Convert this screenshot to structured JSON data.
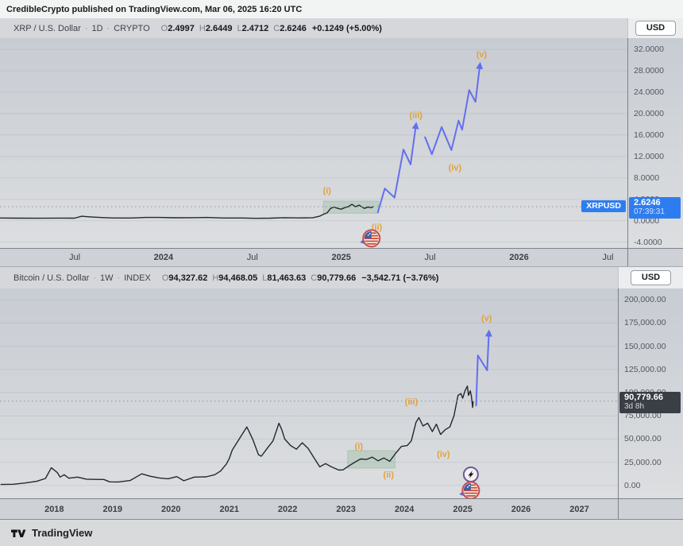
{
  "header": {
    "text": "CredibleCrypto published on TradingView.com, Mar 06, 2025 16:20 UTC"
  },
  "footer": {
    "brand": "TradingView"
  },
  "colors": {
    "projection_blue": "#5b66f0",
    "wave_orange": "#e2a23d",
    "series_dark": "#23272f",
    "box_green_fill": "rgba(96,160,104,0.20)",
    "box_green_edge": "rgba(96,160,104,0.30)",
    "grid": "rgba(120,128,140,0.16)",
    "dashed_price": "#8f949c",
    "badge_blue": "#2e7df0",
    "badge_dark": "#3a3e45",
    "avatar_ring": "#c84b4e",
    "lightning_ring": "#6b5b95"
  },
  "chart_data": [
    {
      "type": "line",
      "title_line": {
        "symbol": "XRP / U.S. Dollar",
        "interval": "1D",
        "market": "CRYPTO",
        "change": "+0.1249 (+5.00%)"
      },
      "ohlc": [
        [
          "O",
          "2.4997"
        ],
        [
          "H",
          "2.6449"
        ],
        [
          "L",
          "2.4712"
        ],
        [
          "C",
          "2.6246"
        ]
      ],
      "currency": "USD",
      "x_range": [
        2023.08,
        2026.61
      ],
      "y_range": [
        -5.1,
        34.1
      ],
      "x_ticks": [
        {
          "label": "Jul",
          "x": 2023.5,
          "bold": false
        },
        {
          "label": "2024",
          "x": 2024.0,
          "bold": true
        },
        {
          "label": "Jul",
          "x": 2024.5,
          "bold": false
        },
        {
          "label": "2025",
          "x": 2025.0,
          "bold": true
        },
        {
          "label": "Jul",
          "x": 2025.5,
          "bold": false
        },
        {
          "label": "2026",
          "x": 2026.0,
          "bold": true
        },
        {
          "label": "Jul",
          "x": 2026.5,
          "bold": false
        }
      ],
      "y_ticks": [
        {
          "label": "32.0000",
          "v": 32
        },
        {
          "label": "28.0000",
          "v": 28
        },
        {
          "label": "24.0000",
          "v": 24
        },
        {
          "label": "20.0000",
          "v": 20
        },
        {
          "label": "16.0000",
          "v": 16
        },
        {
          "label": "12.0000",
          "v": 12
        },
        {
          "label": "8.0000",
          "v": 8
        },
        {
          "label": "4.0000",
          "v": 4
        },
        {
          "label": "0.0000",
          "v": 0
        },
        {
          "label": "-4.0000",
          "v": -4
        }
      ],
      "series": [
        [
          2023.08,
          0.5
        ],
        [
          2023.18,
          0.47
        ],
        [
          2023.3,
          0.45
        ],
        [
          2023.42,
          0.48
        ],
        [
          2023.5,
          0.47
        ],
        [
          2023.54,
          0.82
        ],
        [
          2023.58,
          0.72
        ],
        [
          2023.64,
          0.6
        ],
        [
          2023.72,
          0.5
        ],
        [
          2023.82,
          0.5
        ],
        [
          2023.9,
          0.6
        ],
        [
          2023.98,
          0.6
        ],
        [
          2024.06,
          0.54
        ],
        [
          2024.16,
          0.55
        ],
        [
          2024.24,
          0.6
        ],
        [
          2024.34,
          0.5
        ],
        [
          2024.44,
          0.5
        ],
        [
          2024.52,
          0.44
        ],
        [
          2024.6,
          0.47
        ],
        [
          2024.68,
          0.55
        ],
        [
          2024.76,
          0.52
        ],
        [
          2024.84,
          0.55
        ],
        [
          2024.88,
          0.85
        ],
        [
          2024.9,
          1.2
        ],
        [
          2024.92,
          1.45
        ],
        [
          2024.94,
          2.3
        ],
        [
          2024.96,
          2.55
        ],
        [
          2024.98,
          2.3
        ],
        [
          2025.0,
          2.15
        ],
        [
          2025.02,
          2.45
        ],
        [
          2025.04,
          2.6
        ],
        [
          2025.06,
          3.05
        ],
        [
          2025.08,
          2.6
        ],
        [
          2025.1,
          2.9
        ],
        [
          2025.12,
          2.5
        ],
        [
          2025.13,
          2.3
        ],
        [
          2025.15,
          2.55
        ],
        [
          2025.17,
          2.45
        ],
        [
          2025.18,
          2.62
        ]
      ],
      "projections": [
        [
          [
            2025.205,
            1.45
          ],
          [
            2025.245,
            6.0
          ],
          [
            2025.3,
            4.3
          ],
          [
            2025.35,
            13.3
          ],
          [
            2025.39,
            10.5
          ],
          [
            2025.42,
            17.8
          ]
        ],
        [
          [
            2025.47,
            15.7
          ],
          [
            2025.51,
            12.4
          ],
          [
            2025.565,
            17.5
          ],
          [
            2025.62,
            13.2
          ],
          [
            2025.66,
            18.7
          ],
          [
            2025.68,
            17.0
          ],
          [
            2025.72,
            24.4
          ],
          [
            2025.755,
            22.2
          ],
          [
            2025.78,
            29.0
          ]
        ]
      ],
      "wave_labels": [
        {
          "t": "(i)",
          "x": 2024.92,
          "y": 5.7
        },
        {
          "t": "(ii)",
          "x": 2025.2,
          "y": -1.2
        },
        {
          "t": "(iii)",
          "x": 2025.42,
          "y": 19.8
        },
        {
          "t": "(iv)",
          "x": 2025.64,
          "y": 10.0
        },
        {
          "t": "(v)",
          "x": 2025.79,
          "y": 31.1
        }
      ],
      "box": {
        "x1": 2024.9,
        "x2": 2025.21,
        "y1": 1.4,
        "y2": 3.66
      },
      "price_line": 2.6246,
      "badge": {
        "symbol": "XRPUSD",
        "price": "2.6246",
        "sub": "07:39:31",
        "bg": "#2e7df0"
      },
      "icons": [
        {
          "name": "crediblecrypto-avatar",
          "x": 2025.17,
          "y": -3.3
        }
      ]
    },
    {
      "type": "line",
      "title_line": {
        "symbol": "Bitcoin / U.S. Dollar",
        "interval": "1W",
        "market": "INDEX",
        "change": "−3,542.71 (−3.76%)"
      },
      "ohlc": [
        [
          "O",
          "94,327.62"
        ],
        [
          "H",
          "94,468.05"
        ],
        [
          "L",
          "81,463.63"
        ],
        [
          "C",
          "90,779.66"
        ]
      ],
      "currency": "USD",
      "x_range": [
        2017.07,
        2027.66
      ],
      "y_range": [
        -13900,
        212200
      ],
      "x_ticks": [
        {
          "label": "2018",
          "x": 2018,
          "bold": true
        },
        {
          "label": "2019",
          "x": 2019,
          "bold": true
        },
        {
          "label": "2020",
          "x": 2020,
          "bold": true
        },
        {
          "label": "2021",
          "x": 2021,
          "bold": true
        },
        {
          "label": "2022",
          "x": 2022,
          "bold": true
        },
        {
          "label": "2023",
          "x": 2023,
          "bold": true
        },
        {
          "label": "2024",
          "x": 2024,
          "bold": true
        },
        {
          "label": "2025",
          "x": 2025,
          "bold": true
        },
        {
          "label": "2026",
          "x": 2026,
          "bold": true
        },
        {
          "label": "2027",
          "x": 2027,
          "bold": true
        }
      ],
      "y_ticks": [
        {
          "label": "200,000.00",
          "v": 200000
        },
        {
          "label": "175,000.00",
          "v": 175000
        },
        {
          "label": "150,000.00",
          "v": 150000
        },
        {
          "label": "125,000.00",
          "v": 125000
        },
        {
          "label": "100,000.00",
          "v": 100000
        },
        {
          "label": "75,000.00",
          "v": 75000
        },
        {
          "label": "50,000.00",
          "v": 50000
        },
        {
          "label": "25,000.00",
          "v": 25000
        },
        {
          "label": "0.00",
          "v": 0
        }
      ],
      "series": [
        [
          2017.08,
          1000
        ],
        [
          2017.3,
          1300
        ],
        [
          2017.5,
          2600
        ],
        [
          2017.7,
          4400
        ],
        [
          2017.85,
          7500
        ],
        [
          2017.95,
          19000
        ],
        [
          2018.05,
          14000
        ],
        [
          2018.1,
          9000
        ],
        [
          2018.17,
          11500
        ],
        [
          2018.25,
          7800
        ],
        [
          2018.4,
          9000
        ],
        [
          2018.55,
          6700
        ],
        [
          2018.7,
          6500
        ],
        [
          2018.85,
          6400
        ],
        [
          2018.95,
          3800
        ],
        [
          2019.1,
          3700
        ],
        [
          2019.3,
          5300
        ],
        [
          2019.5,
          12500
        ],
        [
          2019.65,
          9800
        ],
        [
          2019.8,
          8000
        ],
        [
          2019.95,
          7200
        ],
        [
          2020.1,
          9500
        ],
        [
          2020.22,
          5000
        ],
        [
          2020.4,
          9000
        ],
        [
          2020.6,
          9200
        ],
        [
          2020.75,
          11500
        ],
        [
          2020.85,
          15500
        ],
        [
          2020.95,
          23000
        ],
        [
          2021.0,
          29000
        ],
        [
          2021.05,
          38000
        ],
        [
          2021.15,
          48000
        ],
        [
          2021.25,
          58000
        ],
        [
          2021.3,
          63000
        ],
        [
          2021.4,
          50000
        ],
        [
          2021.5,
          33000
        ],
        [
          2021.55,
          31500
        ],
        [
          2021.65,
          40000
        ],
        [
          2021.75,
          48000
        ],
        [
          2021.85,
          67000
        ],
        [
          2021.9,
          60000
        ],
        [
          2021.95,
          50000
        ],
        [
          2022.05,
          43000
        ],
        [
          2022.15,
          39000
        ],
        [
          2022.25,
          46000
        ],
        [
          2022.35,
          40000
        ],
        [
          2022.45,
          30000
        ],
        [
          2022.55,
          20000
        ],
        [
          2022.65,
          23500
        ],
        [
          2022.75,
          20000
        ],
        [
          2022.88,
          16500
        ],
        [
          2022.95,
          16800
        ],
        [
          2023.05,
          21000
        ],
        [
          2023.15,
          25000
        ],
        [
          2023.25,
          28500
        ],
        [
          2023.35,
          28000
        ],
        [
          2023.45,
          30500
        ],
        [
          2023.55,
          26500
        ],
        [
          2023.65,
          29500
        ],
        [
          2023.75,
          26000
        ],
        [
          2023.85,
          34500
        ],
        [
          2023.95,
          42000
        ],
        [
          2024.05,
          43000
        ],
        [
          2024.12,
          48000
        ],
        [
          2024.2,
          68000
        ],
        [
          2024.25,
          73000
        ],
        [
          2024.32,
          64000
        ],
        [
          2024.4,
          67000
        ],
        [
          2024.48,
          58000
        ],
        [
          2024.55,
          66000
        ],
        [
          2024.62,
          55000
        ],
        [
          2024.7,
          60000
        ],
        [
          2024.78,
          63000
        ],
        [
          2024.85,
          75000
        ],
        [
          2024.92,
          97000
        ],
        [
          2024.97,
          99000
        ],
        [
          2025.0,
          94000
        ],
        [
          2025.04,
          102000
        ],
        [
          2025.08,
          107000
        ],
        [
          2025.1,
          97000
        ],
        [
          2025.13,
          102000
        ],
        [
          2025.15,
          96000
        ],
        [
          2025.17,
          84000
        ],
        [
          2025.18,
          90800
        ]
      ],
      "projections": [
        [
          [
            2025.23,
            85400
          ],
          [
            2025.26,
            140200
          ],
          [
            2025.42,
            124000
          ],
          [
            2025.45,
            164200
          ]
        ]
      ],
      "wave_labels": [
        {
          "t": "(i)",
          "x": 2023.22,
          "y": 42600
        },
        {
          "t": "(ii)",
          "x": 2023.73,
          "y": 11800
        },
        {
          "t": "(iii)",
          "x": 2024.12,
          "y": 90600
        },
        {
          "t": "(iv)",
          "x": 2024.67,
          "y": 34100
        },
        {
          "t": "(v)",
          "x": 2025.41,
          "y": 180500
        }
      ],
      "box": {
        "x1": 2023.03,
        "x2": 2023.84,
        "y1": 18700,
        "y2": 37500
      },
      "price_line": 90779.66,
      "badge": {
        "price": "90,779.66",
        "sub": "3d 8h",
        "bg": "#3a3e45"
      },
      "icons": [
        {
          "name": "lightning",
          "x": 2025.14,
          "y": 11800
        },
        {
          "name": "crediblecrypto-avatar",
          "x": 2025.14,
          "y": -5300
        }
      ]
    }
  ]
}
